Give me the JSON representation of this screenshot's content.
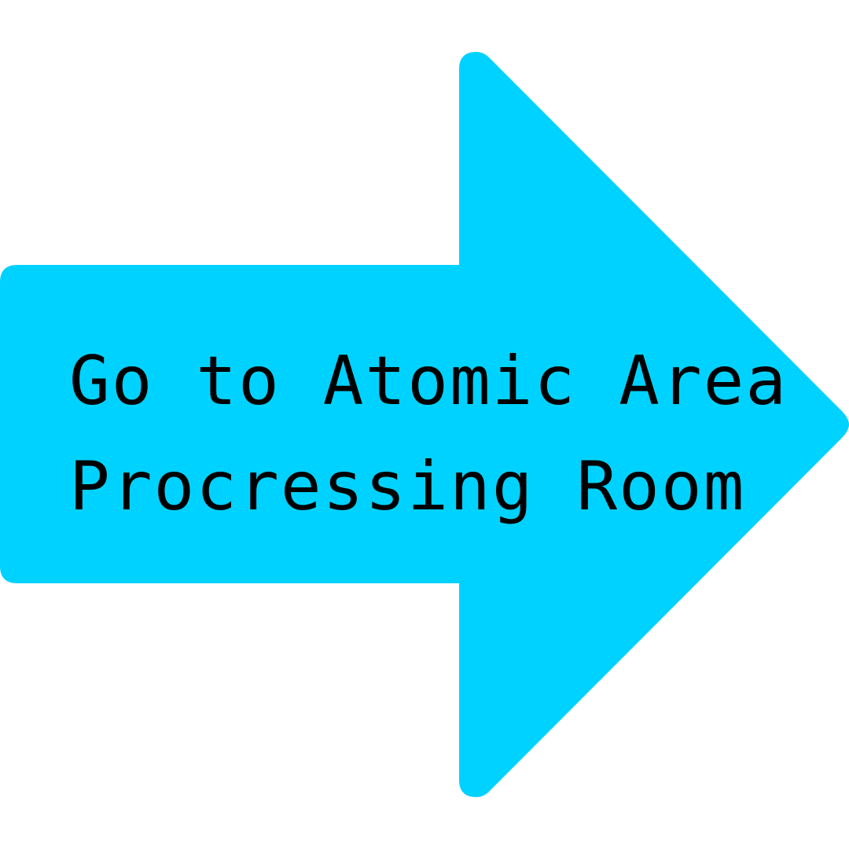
{
  "sign": {
    "fill_color": "#00d2ff",
    "text_color": "#000000",
    "lines": [
      "Go to Atomic Area",
      "Procressing Room"
    ]
  }
}
